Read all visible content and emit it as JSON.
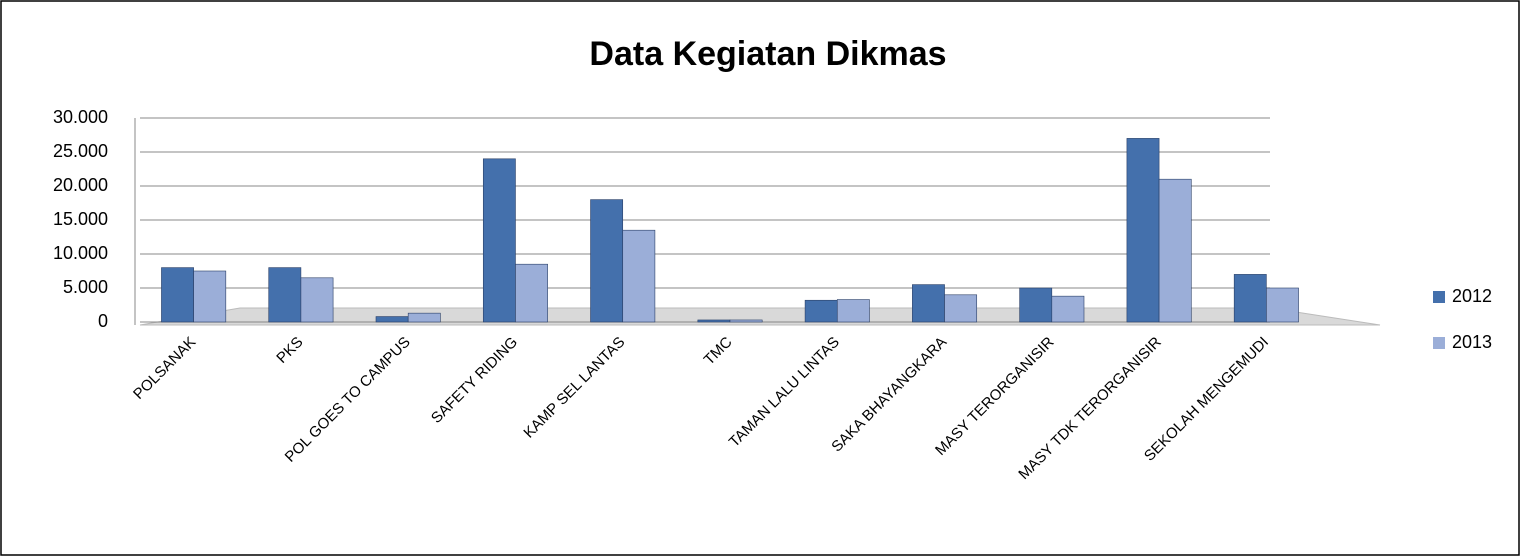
{
  "chart_data": {
    "type": "bar",
    "title": "Data Kegiatan Dikmas",
    "categories": [
      "POLSANAK",
      "PKS",
      "POL GOES TO CAMPUS",
      "SAFETY RIDING",
      "KAMP SEL  LANTAS",
      "TMC",
      "TAMAN LALU LINTAS",
      "SAKA BHAYANGKARA",
      "MASY  TERORGANISIR",
      "MASY  TDK TERORGANISIR",
      "SEKOLAH MENGEMUDI"
    ],
    "series": [
      {
        "name": "2012",
        "color": "#4470ac",
        "values": [
          8000,
          8000,
          800,
          24000,
          18000,
          300,
          3200,
          5500,
          5000,
          27000,
          7000
        ]
      },
      {
        "name": "2013",
        "color": "#9baed8",
        "values": [
          7500,
          6500,
          1300,
          8500,
          13500,
          300,
          3300,
          4000,
          3800,
          21000,
          5000
        ]
      }
    ],
    "ylim": [
      0,
      30000
    ],
    "yticks": [
      0,
      {
        "value": 5000,
        "label": "5.000"
      },
      {
        "value": 10000,
        "label": "10.000"
      },
      {
        "value": 15000,
        "label": "15.000"
      },
      {
        "value": 20000,
        "label": "20.000"
      },
      {
        "value": 25000,
        "label": "25.000"
      },
      {
        "value": 30000,
        "label": "30.000"
      }
    ],
    "grid": true,
    "legend": "right"
  }
}
